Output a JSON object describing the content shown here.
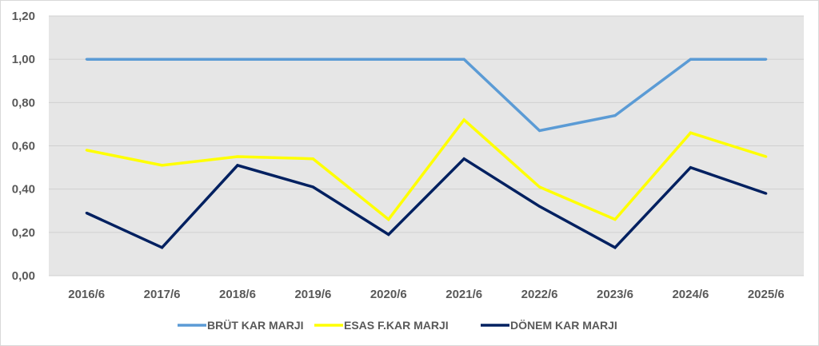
{
  "chart_data": {
    "type": "line",
    "title": "",
    "xlabel": "",
    "ylabel": "",
    "categories": [
      "2016/6",
      "2017/6",
      "2018/6",
      "2019/6",
      "2020/6",
      "2021/6",
      "2022/6",
      "2023/6",
      "2024/6",
      "2025/6"
    ],
    "ylim": [
      0,
      1.2
    ],
    "yticks": [
      "0,00",
      "0,20",
      "0,40",
      "0,60",
      "0,80",
      "1,00",
      "1,20"
    ],
    "ytick_values": [
      0,
      0.2,
      0.4,
      0.6,
      0.8,
      1.0,
      1.2
    ],
    "grid": true,
    "legend_position": "bottom",
    "plot_background": "#e6e6e6",
    "series": [
      {
        "name": "BRÜT KAR MARJI",
        "color": "#5b9bd5",
        "values": [
          1.0,
          1.0,
          1.0,
          1.0,
          1.0,
          1.0,
          0.67,
          0.74,
          1.0,
          1.0
        ]
      },
      {
        "name": "ESAS F.KAR MARJI",
        "color": "#ffff00",
        "values": [
          0.58,
          0.51,
          0.55,
          0.54,
          0.26,
          0.72,
          0.41,
          0.26,
          0.66,
          0.55
        ]
      },
      {
        "name": "DÖNEM KAR MARJI",
        "color": "#002060",
        "values": [
          0.29,
          0.13,
          0.51,
          0.41,
          0.19,
          0.54,
          0.32,
          0.13,
          0.5,
          0.38
        ]
      }
    ]
  }
}
